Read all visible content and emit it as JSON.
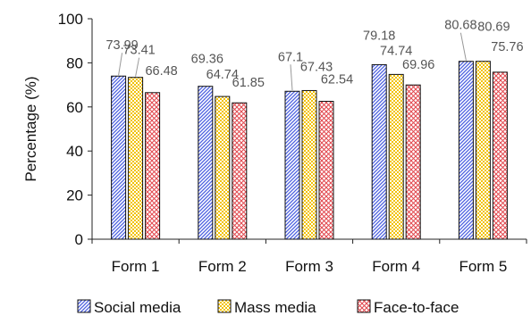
{
  "chart_data": {
    "type": "bar",
    "title": "",
    "xlabel": "",
    "ylabel": "Percentage (%)",
    "ylim": [
      0,
      100
    ],
    "yticks": [
      0,
      20,
      40,
      60,
      80,
      100
    ],
    "grid": false,
    "legend_position": "bottom",
    "categories": [
      "Form 1",
      "Form 2",
      "Form 3",
      "Form 4",
      "Form 5"
    ],
    "series": [
      {
        "name": "Social media",
        "values": [
          73.99,
          69.36,
          67.1,
          79.18,
          80.68
        ],
        "labels": [
          "73.99",
          "69.36",
          "67.1",
          "79.18",
          "80.68"
        ],
        "color": "#4b5fe0",
        "pattern": "diagonal-blue"
      },
      {
        "name": "Mass media",
        "values": [
          73.41,
          64.74,
          67.43,
          74.74,
          80.69
        ],
        "labels": [
          "73.41",
          "64.74",
          "67.43",
          "74.74",
          "80.69"
        ],
        "color": "#f2c200",
        "pattern": "checker-yellow"
      },
      {
        "name": "Face-to-face",
        "values": [
          66.48,
          61.85,
          62.54,
          69.96,
          75.76
        ],
        "labels": [
          "66.48",
          "61.85",
          "62.54",
          "69.96",
          "75.76"
        ],
        "color": "#e2474d",
        "pattern": "crosshatch-red"
      }
    ]
  }
}
